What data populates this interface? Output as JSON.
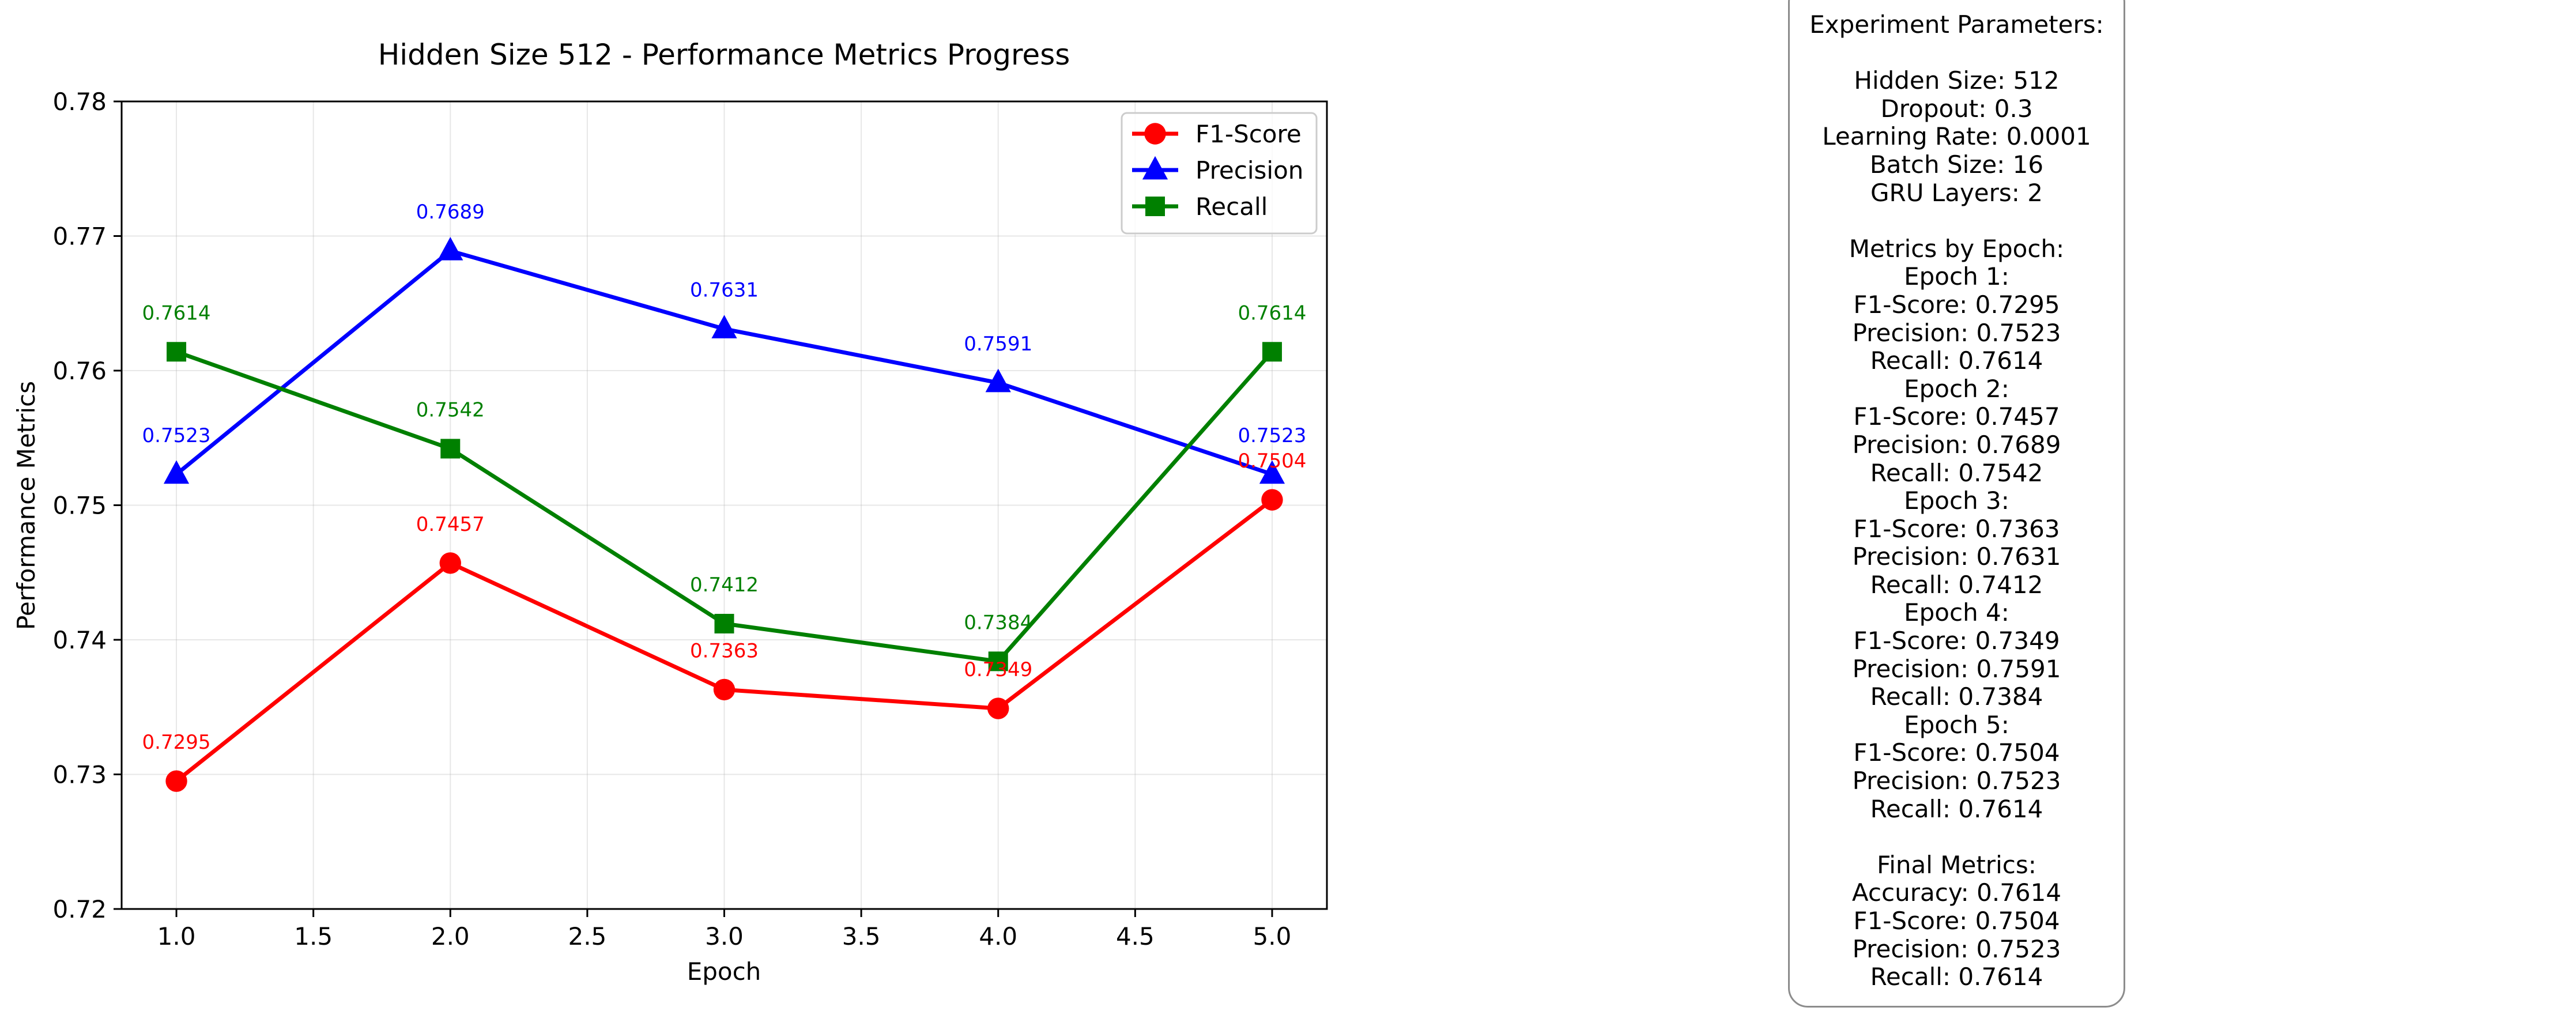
{
  "chart_data": {
    "type": "line",
    "title": "Hidden Size 512 - Performance Metrics Progress",
    "xlabel": "Epoch",
    "ylabel": "Performance Metrics",
    "xlim": [
      0.8,
      5.2
    ],
    "ylim": [
      0.72,
      0.78
    ],
    "x_ticks": [
      "1.0",
      "1.5",
      "2.0",
      "2.5",
      "3.0",
      "3.5",
      "4.0",
      "4.5",
      "5.0"
    ],
    "y_ticks": [
      "0.72",
      "0.73",
      "0.74",
      "0.75",
      "0.76",
      "0.77",
      "0.78"
    ],
    "grid": true,
    "legend_position": "top-right",
    "x": [
      1,
      2,
      3,
      4,
      5
    ],
    "series": [
      {
        "name": "F1-Score",
        "color": "#ff0000",
        "marker": "circle",
        "values": [
          0.7295,
          0.7457,
          0.7363,
          0.7349,
          0.7504
        ],
        "labels": [
          "0.7295",
          "0.7457",
          "0.7363",
          "0.7349",
          "0.7504"
        ]
      },
      {
        "name": "Precision",
        "color": "#0000ff",
        "marker": "triangle",
        "values": [
          0.7523,
          0.7689,
          0.7631,
          0.7591,
          0.7523
        ],
        "labels": [
          "0.7523",
          "0.7689",
          "0.7631",
          "0.7591",
          "0.7523"
        ]
      },
      {
        "name": "Recall",
        "color": "#008000",
        "marker": "square",
        "values": [
          0.7614,
          0.7542,
          0.7412,
          0.7384,
          0.7614
        ],
        "labels": [
          "0.7614",
          "0.7542",
          "0.7412",
          "0.7384",
          "0.7614"
        ]
      }
    ]
  },
  "params_box": {
    "lines": [
      "Experiment Parameters:",
      "",
      "Hidden Size: 512",
      "Dropout: 0.3",
      "Learning Rate: 0.0001",
      "Batch Size: 16",
      "GRU Layers: 2",
      "",
      "Metrics by Epoch:",
      "Epoch 1:",
      "F1-Score: 0.7295",
      "Precision: 0.7523",
      "Recall: 0.7614",
      "Epoch 2:",
      "F1-Score: 0.7457",
      "Precision: 0.7689",
      "Recall: 0.7542",
      "Epoch 3:",
      "F1-Score: 0.7363",
      "Precision: 0.7631",
      "Recall: 0.7412",
      "Epoch 4:",
      "F1-Score: 0.7349",
      "Precision: 0.7591",
      "Recall: 0.7384",
      "Epoch 5:",
      "F1-Score: 0.7504",
      "Precision: 0.7523",
      "Recall: 0.7614",
      "",
      "Final Metrics:",
      "Accuracy: 0.7614",
      "F1-Score: 0.7504",
      "Precision: 0.7523",
      "Recall: 0.7614"
    ]
  }
}
